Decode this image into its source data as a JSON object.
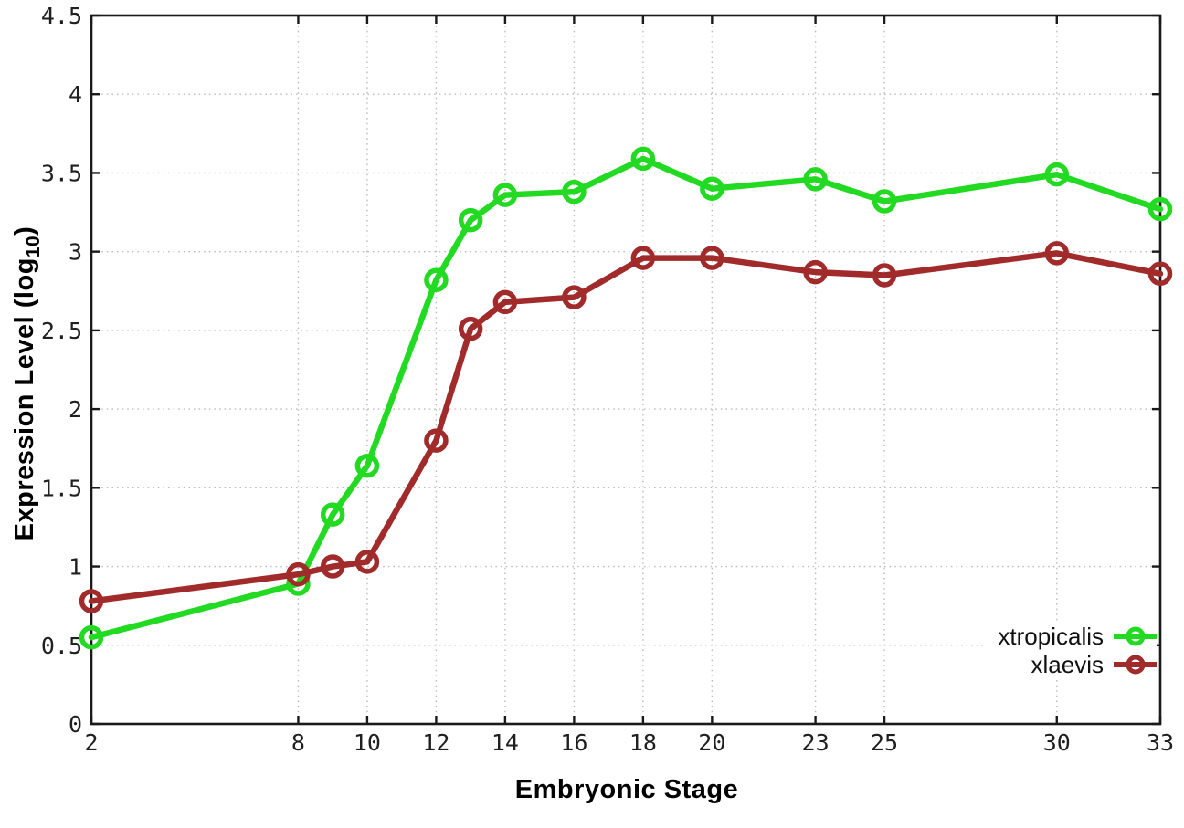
{
  "figure": {
    "background": "#ffffff",
    "border_color": "#1a1a1a",
    "grid_color": "#bdbdbd",
    "tick_label_color": "#1f1f1f"
  },
  "chart_data": {
    "type": "line",
    "title": "",
    "xlabel": "Embryonic Stage",
    "ylabel": "Expression Level (log10)",
    "ylabel_parts": {
      "base": "Expression Level (log",
      "sub": "10",
      "close": ")"
    },
    "xlim": [
      2,
      33
    ],
    "ylim": [
      0,
      4.5
    ],
    "grid": true,
    "legend_position": "bottom-right",
    "x_ticks": [
      2,
      8,
      10,
      12,
      14,
      16,
      18,
      20,
      23,
      25,
      30,
      33
    ],
    "x_tick_labels": [
      "2",
      "8",
      "10",
      "12",
      "14",
      "16",
      "18",
      "20",
      "23",
      "25",
      "30",
      "33"
    ],
    "y_ticks": [
      0,
      0.5,
      1,
      1.5,
      2,
      2.5,
      3,
      3.5,
      4,
      4.5
    ],
    "y_tick_labels": [
      "0",
      "0.5",
      "1",
      "1.5",
      "2",
      "2.5",
      "3",
      "3.5",
      "4",
      "4.5"
    ],
    "x": [
      2,
      8,
      9,
      10,
      12,
      13,
      14,
      16,
      18,
      20,
      23,
      25,
      30,
      33
    ],
    "series": [
      {
        "name": "xtropicalis",
        "color": "#22da22",
        "values": [
          0.55,
          0.89,
          1.33,
          1.64,
          2.82,
          3.2,
          3.36,
          3.38,
          3.59,
          3.4,
          3.46,
          3.32,
          3.49,
          3.27
        ]
      },
      {
        "name": "xlaevis",
        "color": "#a12a2a",
        "values": [
          0.78,
          0.95,
          1.0,
          1.03,
          1.8,
          2.51,
          2.68,
          2.71,
          2.96,
          2.96,
          2.87,
          2.85,
          2.99,
          2.86
        ]
      }
    ]
  }
}
